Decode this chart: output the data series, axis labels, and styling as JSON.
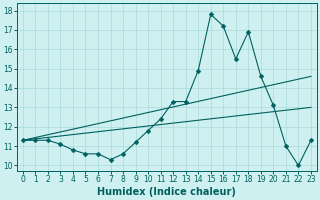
{
  "title": "",
  "xlabel": "Humidex (Indice chaleur)",
  "x": [
    0,
    1,
    2,
    3,
    4,
    5,
    6,
    7,
    8,
    9,
    10,
    11,
    12,
    13,
    14,
    15,
    16,
    17,
    18,
    19,
    20,
    21,
    22,
    23
  ],
  "line1": [
    11.3,
    11.3,
    11.3,
    11.1,
    10.8,
    10.6,
    10.6,
    10.3,
    10.6,
    11.2,
    11.8,
    12.4,
    13.3,
    13.3,
    14.9,
    17.8,
    17.2,
    15.5,
    16.9,
    14.6,
    13.1,
    11.0,
    10.0,
    11.3
  ],
  "line2_x": [
    0,
    23
  ],
  "line2_y": [
    11.3,
    14.6
  ],
  "line3_x": [
    0,
    23
  ],
  "line3_y": [
    11.3,
    13.0
  ],
  "ylim": [
    9.7,
    18.4
  ],
  "xlim": [
    -0.5,
    23.5
  ],
  "yticks": [
    10,
    11,
    12,
    13,
    14,
    15,
    16,
    17,
    18
  ],
  "xticks": [
    0,
    1,
    2,
    3,
    4,
    5,
    6,
    7,
    8,
    9,
    10,
    11,
    12,
    13,
    14,
    15,
    16,
    17,
    18,
    19,
    20,
    21,
    22,
    23
  ],
  "xtick_labels": [
    "0",
    "1",
    "2",
    "3",
    "4",
    "5",
    "6",
    "7",
    "8",
    "9",
    "10",
    "11",
    "12",
    "13",
    "14",
    "15",
    "16",
    "17",
    "18",
    "19",
    "20",
    "21",
    "22",
    "23"
  ],
  "bg_color": "#cff0f0",
  "grid_color": "#aadada",
  "line_color": "#006060",
  "markersize": 2.5,
  "xlabel_fontsize": 7,
  "tick_fontsize": 5.5
}
